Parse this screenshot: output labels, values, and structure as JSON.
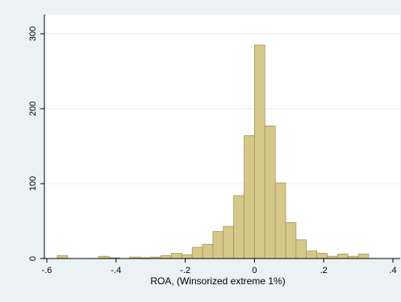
{
  "chart_data": {
    "type": "bar",
    "title": "",
    "xlabel": "ROA, (Winsorized extreme 1%)",
    "ylabel": "",
    "xlim": [
      -0.6,
      0.4
    ],
    "ylim": [
      0,
      300
    ],
    "x_ticks": [
      -0.6,
      -0.4,
      -0.2,
      0,
      0.2,
      0.4
    ],
    "x_tick_labels": [
      "-.6",
      "-.4",
      "-.2",
      "0",
      ".2",
      ".4"
    ],
    "y_ticks": [
      0,
      100,
      200,
      300
    ],
    "y_tick_labels": [
      "0",
      "100",
      "200",
      "300"
    ],
    "grid": "horizontal",
    "legend": "none",
    "bar_color": "#d5c889",
    "bar_edge_color": "#a5965a",
    "plot_background": "#ffffff",
    "background": "#eaf2f3",
    "bins": [
      {
        "x0": -0.57,
        "x1": -0.54,
        "value": 4
      },
      {
        "x0": -0.54,
        "x1": -0.51,
        "value": 0
      },
      {
        "x0": -0.51,
        "x1": -0.48,
        "value": 0
      },
      {
        "x0": -0.48,
        "x1": -0.45,
        "value": 0
      },
      {
        "x0": -0.45,
        "x1": -0.42,
        "value": 3
      },
      {
        "x0": -0.42,
        "x1": -0.39,
        "value": 1
      },
      {
        "x0": -0.39,
        "x1": -0.36,
        "value": 0
      },
      {
        "x0": -0.36,
        "x1": -0.33,
        "value": 2
      },
      {
        "x0": -0.33,
        "x1": -0.3,
        "value": 1
      },
      {
        "x0": -0.3,
        "x1": -0.27,
        "value": 2
      },
      {
        "x0": -0.27,
        "x1": -0.24,
        "value": 4
      },
      {
        "x0": -0.24,
        "x1": -0.21,
        "value": 7
      },
      {
        "x0": -0.21,
        "x1": -0.18,
        "value": 5
      },
      {
        "x0": -0.18,
        "x1": -0.15,
        "value": 15
      },
      {
        "x0": -0.15,
        "x1": -0.12,
        "value": 19
      },
      {
        "x0": -0.12,
        "x1": -0.09,
        "value": 36
      },
      {
        "x0": -0.09,
        "x1": -0.06,
        "value": 43
      },
      {
        "x0": -0.06,
        "x1": -0.03,
        "value": 84
      },
      {
        "x0": -0.03,
        "x1": 0.0,
        "value": 164
      },
      {
        "x0": 0.0,
        "x1": 0.03,
        "value": 285
      },
      {
        "x0": 0.03,
        "x1": 0.06,
        "value": 177
      },
      {
        "x0": 0.06,
        "x1": 0.09,
        "value": 101
      },
      {
        "x0": 0.09,
        "x1": 0.12,
        "value": 48
      },
      {
        "x0": 0.12,
        "x1": 0.15,
        "value": 25
      },
      {
        "x0": 0.15,
        "x1": 0.18,
        "value": 10
      },
      {
        "x0": 0.18,
        "x1": 0.21,
        "value": 7
      },
      {
        "x0": 0.21,
        "x1": 0.24,
        "value": 3
      },
      {
        "x0": 0.24,
        "x1": 0.27,
        "value": 6
      },
      {
        "x0": 0.27,
        "x1": 0.3,
        "value": 3
      },
      {
        "x0": 0.3,
        "x1": 0.33,
        "value": 6
      },
      {
        "x0": 0.33,
        "x1": 0.36,
        "value": 0
      },
      {
        "x0": 0.36,
        "x1": 0.39,
        "value": 0
      }
    ]
  }
}
